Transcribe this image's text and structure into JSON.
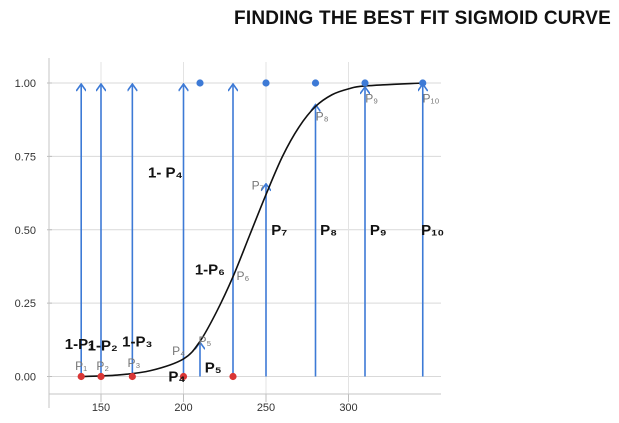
{
  "chart_data": {
    "type": "scatter",
    "title": "FINDING THE BEST FIT SIGMOID CURVE",
    "xlabel": "",
    "ylabel": "",
    "xlim": [
      130,
      350
    ],
    "ylim": [
      0,
      1.05
    ],
    "x_ticks": [
      150,
      200,
      250,
      300
    ],
    "y_ticks": [
      0,
      0.25,
      0.5,
      0.75,
      1.0
    ],
    "x_tick_labels": [
      "150",
      "200",
      "250",
      "300"
    ],
    "y_tick_labels": [
      "0.00",
      "0.25",
      "0.50",
      "0.75",
      "1.00"
    ],
    "grid": true,
    "colors": {
      "class0": "#d93636",
      "class1": "#3d7ad6",
      "arrow": "#3d7ad6",
      "curve": "#111111"
    },
    "points_class0": [
      {
        "x": 138,
        "y": 0
      },
      {
        "x": 150,
        "y": 0
      },
      {
        "x": 169,
        "y": 0
      },
      {
        "x": 200,
        "y": 0
      },
      {
        "x": 230,
        "y": 0
      }
    ],
    "points_class1": [
      {
        "x": 210,
        "y": 1
      },
      {
        "x": 250,
        "y": 1
      },
      {
        "x": 280,
        "y": 1
      },
      {
        "x": 310,
        "y": 1
      },
      {
        "x": 345,
        "y": 1
      }
    ],
    "sigmoid_curve": [
      {
        "x": 138,
        "y": 0.0
      },
      {
        "x": 160,
        "y": 0.005
      },
      {
        "x": 180,
        "y": 0.02
      },
      {
        "x": 200,
        "y": 0.06
      },
      {
        "x": 210,
        "y": 0.12
      },
      {
        "x": 220,
        "y": 0.22
      },
      {
        "x": 230,
        "y": 0.34
      },
      {
        "x": 240,
        "y": 0.48
      },
      {
        "x": 250,
        "y": 0.62
      },
      {
        "x": 260,
        "y": 0.75
      },
      {
        "x": 270,
        "y": 0.85
      },
      {
        "x": 280,
        "y": 0.92
      },
      {
        "x": 290,
        "y": 0.96
      },
      {
        "x": 300,
        "y": 0.98
      },
      {
        "x": 310,
        "y": 0.99
      },
      {
        "x": 345,
        "y": 1.0
      }
    ],
    "arrows": [
      {
        "x": 138,
        "y_from": 0,
        "y_to": 1
      },
      {
        "x": 150,
        "y_from": 0,
        "y_to": 1
      },
      {
        "x": 169,
        "y_from": 0,
        "y_to": 1
      },
      {
        "x": 200,
        "y_from": 0,
        "y_to": 1
      },
      {
        "x": 230,
        "y_from": 0,
        "y_to": 1
      },
      {
        "x": 210,
        "y_from": 0,
        "y_to": 0.12
      },
      {
        "x": 250,
        "y_from": 0,
        "y_to": 0.66
      },
      {
        "x": 280,
        "y_from": 0,
        "y_to": 0.93
      },
      {
        "x": 310,
        "y_from": 0,
        "y_to": 0.99
      },
      {
        "x": 345,
        "y_from": 0,
        "y_to": 1
      }
    ],
    "annotations": [
      {
        "text": "1-P₁",
        "x": 137,
        "y": 0.11,
        "style": "bold"
      },
      {
        "text": "1-P₂",
        "x": 151,
        "y": 0.105,
        "style": "bold"
      },
      {
        "text": "1-P₃",
        "x": 172,
        "y": 0.12,
        "style": "bold"
      },
      {
        "text": "1- P₄",
        "x": 189,
        "y": 0.695,
        "style": "bold"
      },
      {
        "text": "1-P₆",
        "x": 216,
        "y": 0.365,
        "style": "bold"
      },
      {
        "text": "P₁",
        "x": 138,
        "y": 0.04,
        "style": "light"
      },
      {
        "text": "P₂",
        "x": 151,
        "y": 0.04,
        "style": "light"
      },
      {
        "text": "P₃",
        "x": 170,
        "y": 0.05,
        "style": "light"
      },
      {
        "text": "P₄",
        "x": 197,
        "y": 0.09,
        "style": "light"
      },
      {
        "text": "P₅",
        "x": 213,
        "y": 0.125,
        "style": "light"
      },
      {
        "text": "P₆",
        "x": 236,
        "y": 0.345,
        "style": "light"
      },
      {
        "text": "P₇",
        "x": 245,
        "y": 0.655,
        "style": "light"
      },
      {
        "text": "P₈",
        "x": 284,
        "y": 0.89,
        "style": "light"
      },
      {
        "text": "P₉",
        "x": 314,
        "y": 0.95,
        "style": "light"
      },
      {
        "text": "P₁₀",
        "x": 350,
        "y": 0.95,
        "style": "light"
      },
      {
        "text": "P₄",
        "x": 196,
        "y": 0.0,
        "style": "bold"
      },
      {
        "text": "P₅",
        "x": 218,
        "y": 0.03,
        "style": "bold"
      },
      {
        "text": "P₇",
        "x": 258,
        "y": 0.5,
        "style": "bold"
      },
      {
        "text": "P₈",
        "x": 288,
        "y": 0.5,
        "style": "bold"
      },
      {
        "text": "P₉",
        "x": 318,
        "y": 0.5,
        "style": "bold"
      },
      {
        "text": "P₁₀",
        "x": 351,
        "y": 0.5,
        "style": "bold"
      }
    ]
  }
}
